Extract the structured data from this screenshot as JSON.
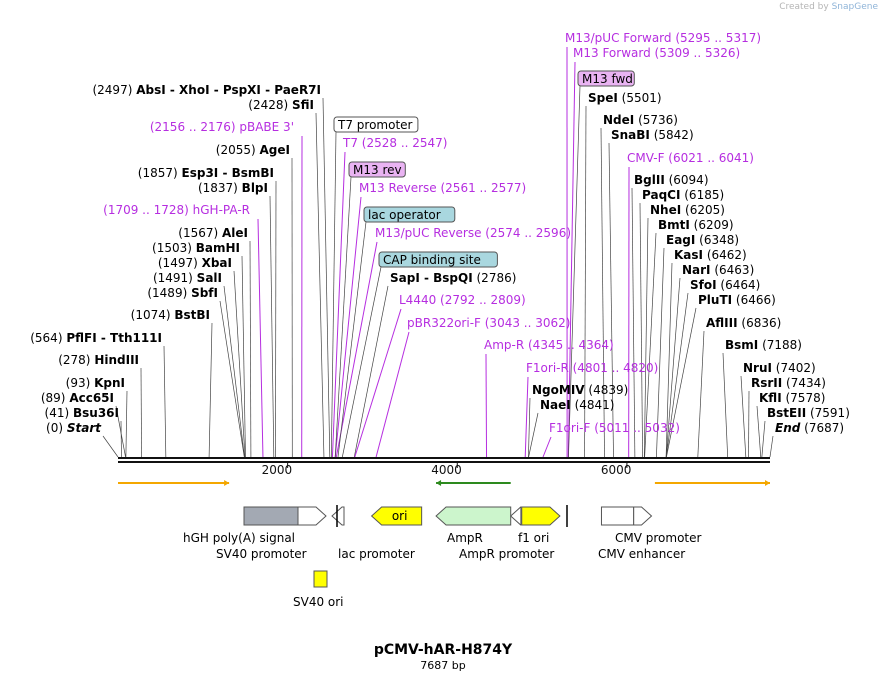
{
  "credit": {
    "prefix": "Created by",
    "brand": "SnapGene"
  },
  "map": {
    "name": "pCMV-hAR-H874Y",
    "length_label": "7687 bp",
    "length": 7687
  },
  "ruler": [
    {
      "pos": 2000,
      "label": "2000"
    },
    {
      "pos": 4000,
      "label": "4000"
    },
    {
      "pos": 6000,
      "label": "6000"
    }
  ],
  "sites": [
    {
      "pos": "(0)",
      "name": "Start",
      "bp": 0,
      "italic": true
    },
    {
      "pos": "(41)",
      "name": "Bsu36I",
      "bp": 41
    },
    {
      "pos": "(89)",
      "name": "Acc65I",
      "bp": 89
    },
    {
      "pos": "(93)",
      "name": "KpnI",
      "bp": 93
    },
    {
      "pos": "(278)",
      "name": "HindIII",
      "bp": 278
    },
    {
      "pos": "(564)",
      "name": "PflFI  - Tth111I",
      "bp": 564
    },
    {
      "pos": "(1074)",
      "name": "BstBI",
      "bp": 1074
    },
    {
      "pos": "(1489)",
      "name": "SbfI",
      "bp": 1489
    },
    {
      "pos": "(1491)",
      "name": "SalI",
      "bp": 1491
    },
    {
      "pos": "(1497)",
      "name": "XbaI",
      "bp": 1497
    },
    {
      "pos": "(1503)",
      "name": "BamHI",
      "bp": 1503
    },
    {
      "pos": "(1567)",
      "name": "AleI",
      "bp": 1567
    },
    {
      "pos": "(1837)",
      "name": "BlpI",
      "bp": 1837
    },
    {
      "pos": "(1857)",
      "name": "Esp3I  - BsmBI",
      "bp": 1857
    },
    {
      "pos": "(2055)",
      "name": "AgeI",
      "bp": 2055
    },
    {
      "pos": "(2428)",
      "name": "SfiI",
      "bp": 2428
    },
    {
      "pos": "(2497)",
      "name": "AbsI  - XhoI  - PspXI  - PaeR7I",
      "bp": 2497
    },
    {
      "pos": "(2786)",
      "name": "SapI  - BspQI",
      "bp": 2786,
      "side": "right"
    },
    {
      "pos": "(4839)",
      "name": "NgoMIV",
      "bp": 4839,
      "side": "right"
    },
    {
      "pos": "(4841)",
      "name": "NaeI",
      "bp": 4841,
      "side": "right"
    },
    {
      "pos": "(5501)",
      "name": "SpeI",
      "bp": 5501,
      "side": "right"
    },
    {
      "pos": "(5736)",
      "name": "NdeI",
      "bp": 5736,
      "side": "right"
    },
    {
      "pos": "(5842)",
      "name": "SnaBI",
      "bp": 5842,
      "side": "right"
    },
    {
      "pos": "(6094)",
      "name": "BglII",
      "bp": 6094,
      "side": "right"
    },
    {
      "pos": "(6185)",
      "name": "PaqCI",
      "bp": 6185,
      "side": "right"
    },
    {
      "pos": "(6205)",
      "name": "NheI",
      "bp": 6205,
      "side": "right"
    },
    {
      "pos": "(6209)",
      "name": "BmtI",
      "bp": 6209,
      "side": "right"
    },
    {
      "pos": "(6348)",
      "name": "EagI",
      "bp": 6348,
      "side": "right"
    },
    {
      "pos": "(6462)",
      "name": "KasI",
      "bp": 6462,
      "side": "right"
    },
    {
      "pos": "(6463)",
      "name": "NarI",
      "bp": 6463,
      "side": "right"
    },
    {
      "pos": "(6464)",
      "name": "SfoI",
      "bp": 6464,
      "side": "right"
    },
    {
      "pos": "(6466)",
      "name": "PluTI",
      "bp": 6466,
      "side": "right"
    },
    {
      "pos": "(6836)",
      "name": "AflIII",
      "bp": 6836,
      "side": "right"
    },
    {
      "pos": "(7188)",
      "name": "BsmI",
      "bp": 7188,
      "side": "right"
    },
    {
      "pos": "(7402)",
      "name": "NruI",
      "bp": 7402,
      "side": "right"
    },
    {
      "pos": "(7434)",
      "name": "RsrII",
      "bp": 7434,
      "side": "right"
    },
    {
      "pos": "(7578)",
      "name": "KflI",
      "bp": 7578,
      "side": "right"
    },
    {
      "pos": "(7591)",
      "name": "BstEII",
      "bp": 7591,
      "side": "right"
    },
    {
      "pos": "(7687)",
      "name": "End",
      "bp": 7687,
      "side": "right",
      "italic": true
    }
  ],
  "primers": [
    {
      "name": "hGH-PA-R",
      "range": "(1709 .. 1728)",
      "bp": 1709,
      "side": "left"
    },
    {
      "name": "pBABE 3'",
      "range": "(2156 .. 2176)",
      "bp": 2166,
      "side": "left"
    },
    {
      "name": "T7",
      "range": "(2528 .. 2547)",
      "bp": 2528
    },
    {
      "name": "M13 Reverse",
      "range": "(2561 .. 2577)",
      "bp": 2561
    },
    {
      "name": "M13/pUC Reverse",
      "range": "(2574 .. 2596)",
      "bp": 2574
    },
    {
      "name": "L4440",
      "range": "(2792 .. 2809)",
      "bp": 2792
    },
    {
      "name": "pBR322ori-F",
      "range": "(3043 .. 3062)",
      "bp": 3043
    },
    {
      "name": "Amp-R",
      "range": "(4345 .. 4364)",
      "bp": 4345
    },
    {
      "name": "F1ori-R",
      "range": "(4801 .. 4820)",
      "bp": 4801
    },
    {
      "name": "F1ori-F",
      "range": "(5011 .. 5032)",
      "bp": 5011
    },
    {
      "name": "M13/pUC Forward",
      "range": "(5295 .. 5317)",
      "bp": 5295
    },
    {
      "name": "M13 Forward",
      "range": "(5309 .. 5326)",
      "bp": 5309
    },
    {
      "name": "CMV-F",
      "range": "(6021 .. 6041)",
      "bp": 6021
    }
  ],
  "boxed_features": [
    {
      "name": "T7 promoter",
      "bp": 2515,
      "fill": "#ffffff"
    },
    {
      "name": "M13 rev",
      "bp": 2561,
      "fill": "#e9b3f2"
    },
    {
      "name": "lac operator",
      "bp": 2594,
      "fill": "#a9d7df"
    },
    {
      "name": "CAP binding site",
      "bp": 2645,
      "fill": "#a9d7df"
    },
    {
      "name": "M13 fwd",
      "bp": 5311,
      "fill": "#e9b3f2"
    }
  ],
  "features": [
    {
      "name": "hGH poly(A) signal",
      "start": 1500,
      "end": 2140,
      "fill": "#a3a9b3",
      "dir": "none"
    },
    {
      "name": "SV40 promoter",
      "start": 2140,
      "end": 2450,
      "fill": "#ffffff",
      "dir": "right"
    },
    {
      "name": "SV40 ori",
      "start": 2270,
      "end": 2420,
      "fill": "#ffff00",
      "dir": "none"
    },
    {
      "name": "lac promoter",
      "start": 2580,
      "end": 2700,
      "fill": "#ffffff",
      "dir": "left"
    },
    {
      "name": "ori",
      "start": 2990,
      "end": 3580,
      "fill": "#ffff00",
      "dir": "left"
    },
    {
      "name": "AmpR",
      "start": 3750,
      "end": 4630,
      "fill": "#ccf5cc",
      "dir": "left"
    },
    {
      "name": "AmpR promoter",
      "start": 4630,
      "end": 4750,
      "fill": "#ffffff",
      "dir": "left"
    },
    {
      "name": "f1 ori",
      "start": 4760,
      "end": 5210,
      "fill": "#ffff00",
      "dir": "right"
    },
    {
      "name": "CMV enhancer",
      "start": 5700,
      "end": 6080,
      "fill": "#ffffff",
      "dir": "none"
    },
    {
      "name": "CMV promoter",
      "start": 6080,
      "end": 6290,
      "fill": "#ffffff",
      "dir": "right"
    }
  ],
  "orfs": [
    {
      "start": 0,
      "end": 1310,
      "dir": "right",
      "color": "#f4a700"
    },
    {
      "start": 3750,
      "end": 4630,
      "dir": "left",
      "color": "#2d8a1e"
    },
    {
      "start": 6330,
      "end": 7687,
      "dir": "right",
      "color": "#f4a700"
    }
  ],
  "colors": {
    "primer": "#b62ee0",
    "line": "#444444"
  }
}
